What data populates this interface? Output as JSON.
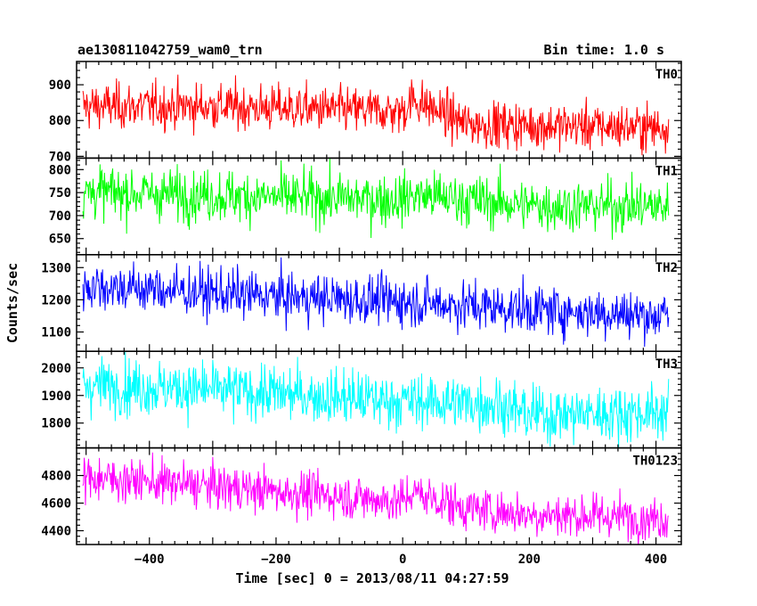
{
  "chart_data": {
    "type": "line",
    "title_left": "ae130811042759_wam0_trn",
    "title_right": "Bin time: 1.0 s",
    "xlabel": "Time [sec] 0 = 2013/08/11 04:27:59",
    "ylabel": "Counts/sec",
    "xlim": [
      -515,
      440
    ],
    "x_ticks": [
      -400,
      -200,
      0,
      200,
      400
    ],
    "x_start": -505,
    "x_end": 420,
    "bin_time": 1.0,
    "panels": [
      {
        "name": "TH0",
        "color": "#ff0000",
        "ylim": [
          695,
          965
        ],
        "y_ticks": [
          700,
          800,
          900
        ],
        "trend": [
          [
            -505,
            840
          ],
          [
            -300,
            840
          ],
          [
            0,
            825
          ],
          [
            15,
            860
          ],
          [
            100,
            790
          ],
          [
            420,
            780
          ]
        ],
        "noise_sd": 32
      },
      {
        "name": "TH1",
        "color": "#00ff00",
        "ylim": [
          615,
          825
        ],
        "y_ticks": [
          650,
          700,
          750,
          800
        ],
        "trend": [
          [
            -505,
            752
          ],
          [
            -200,
            740
          ],
          [
            0,
            735
          ],
          [
            15,
            745
          ],
          [
            200,
            722
          ],
          [
            420,
            720
          ]
        ],
        "noise_sd": 28
      },
      {
        "name": "TH2",
        "color": "#0000ff",
        "ylim": [
          1040,
          1340
        ],
        "y_ticks": [
          1100,
          1200,
          1300
        ],
        "trend": [
          [
            -505,
            1245
          ],
          [
            -200,
            1210
          ],
          [
            0,
            1195
          ],
          [
            200,
            1170
          ],
          [
            420,
            1150
          ]
        ],
        "noise_sd": 38
      },
      {
        "name": "TH3",
        "color": "#00ffff",
        "ylim": [
          1710,
          2060
        ],
        "y_ticks": [
          1800,
          1900,
          2000
        ],
        "trend": [
          [
            -505,
            1940
          ],
          [
            -300,
            1920
          ],
          [
            0,
            1880
          ],
          [
            150,
            1870
          ],
          [
            200,
            1830
          ],
          [
            420,
            1840
          ]
        ],
        "noise_sd": 50
      },
      {
        "name": "TH0123",
        "color": "#ff00ff",
        "ylim": [
          4300,
          5000
        ],
        "y_ticks": [
          4400,
          4600,
          4800
        ],
        "trend": [
          [
            -505,
            4790
          ],
          [
            -300,
            4720
          ],
          [
            -100,
            4650
          ],
          [
            0,
            4610
          ],
          [
            15,
            4680
          ],
          [
            100,
            4560
          ],
          [
            200,
            4520
          ],
          [
            420,
            4490
          ]
        ],
        "noise_sd": 80
      }
    ]
  }
}
